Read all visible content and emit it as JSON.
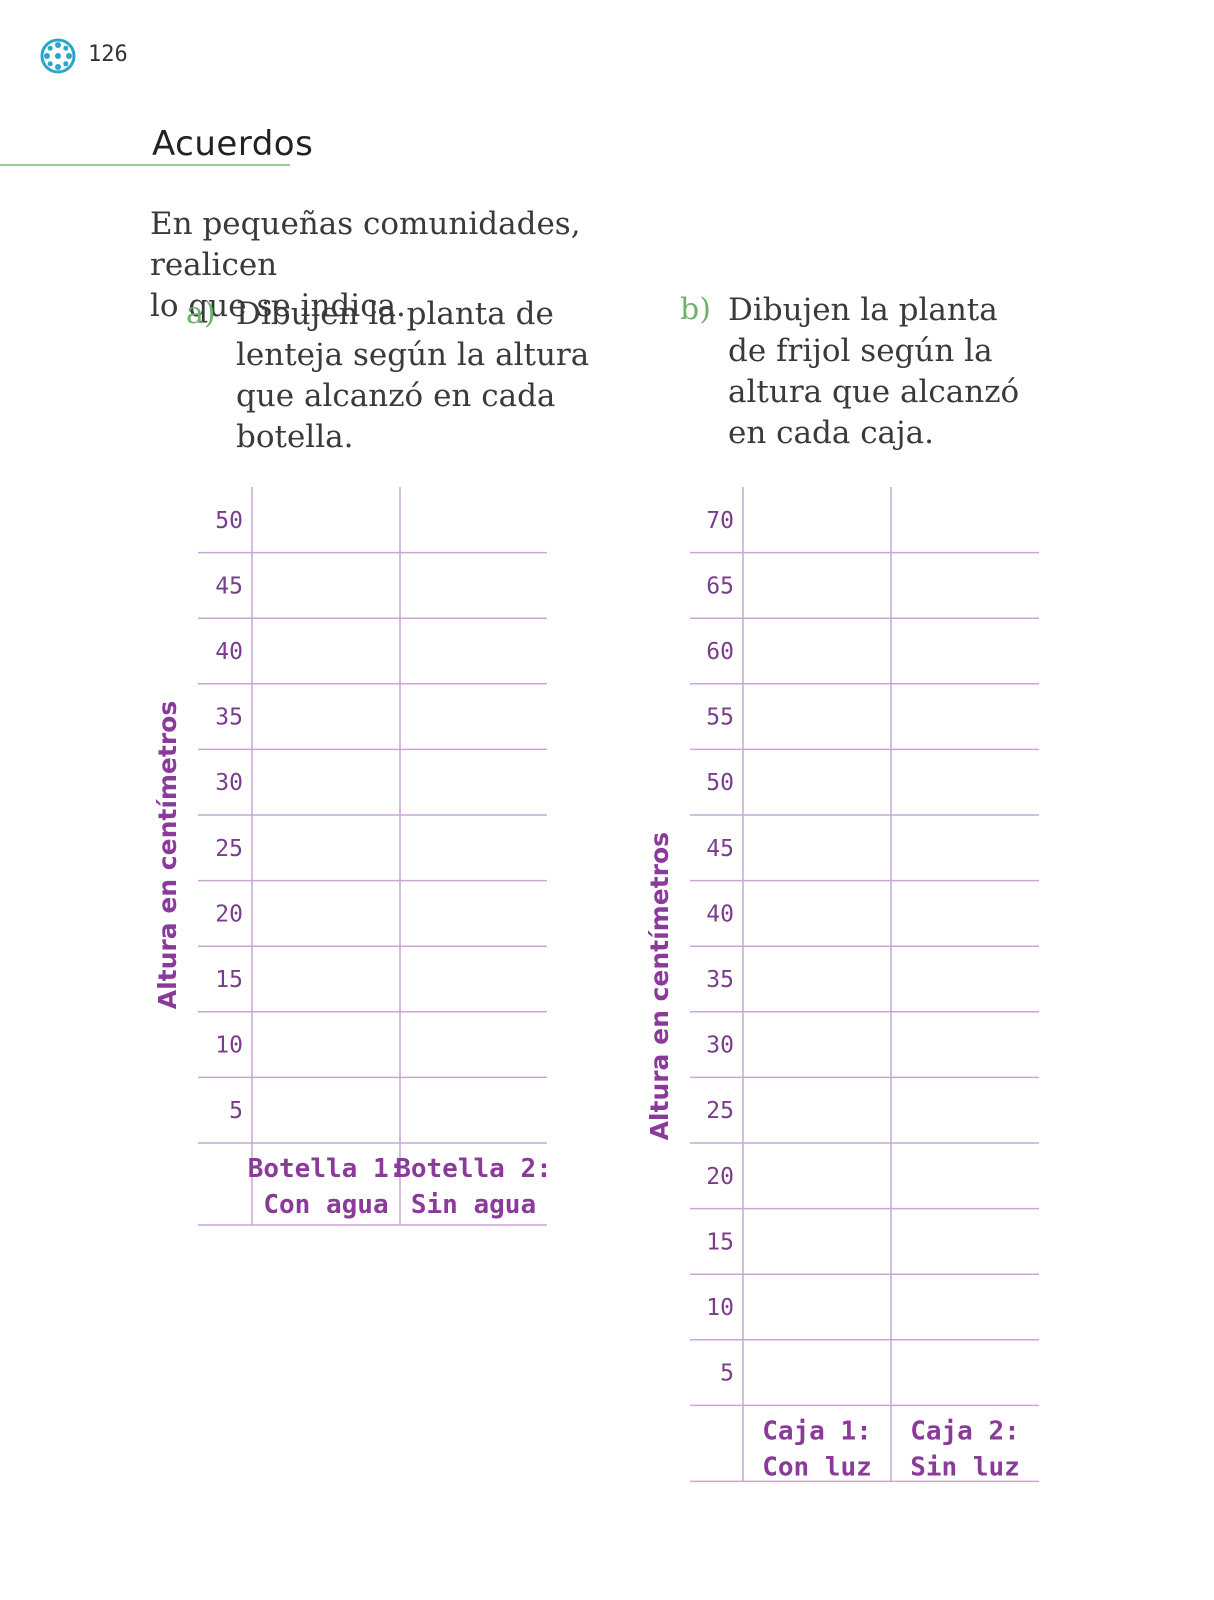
{
  "page": {
    "number": "126",
    "logo_icon": "flower-logo-icon"
  },
  "section": {
    "heading": "Acuerdos"
  },
  "intro": {
    "line1": "En pequeñas comunidades, realicen",
    "line2": "lo que se indica."
  },
  "items": [
    {
      "letter": "a)",
      "lines": [
        "Dibujen la planta de",
        "lenteja según la altura",
        "que alcanzó en cada",
        "botella."
      ]
    },
    {
      "letter": "b)",
      "lines": [
        "Dibujen la planta",
        "de frijol según la",
        "altura que alcanzó",
        "en cada caja."
      ]
    }
  ],
  "chart_data": [
    {
      "type": "table",
      "ylabel": "Altura en centímetros",
      "y_ticks": [
        50,
        45,
        40,
        35,
        30,
        25,
        20,
        15,
        10,
        5
      ],
      "columns": [
        {
          "line1": "Botella 1:",
          "line2": "Con agua"
        },
        {
          "line1": "Botella 2:",
          "line2": "Sin agua"
        }
      ]
    },
    {
      "type": "table",
      "ylabel": "Altura en centímetros",
      "y_ticks": [
        70,
        65,
        60,
        55,
        50,
        45,
        40,
        35,
        30,
        25,
        20,
        15,
        10,
        5
      ],
      "columns": [
        {
          "line1": "Caja 1:",
          "line2": "Con luz"
        },
        {
          "line1": "Caja 2:",
          "line2": "Sin luz"
        }
      ]
    }
  ],
  "colors": {
    "grid_line": "#c9a6d4",
    "label": "#8a3b9a",
    "accent_green": "#9ccb8a",
    "logo": "#2ba6c9"
  }
}
